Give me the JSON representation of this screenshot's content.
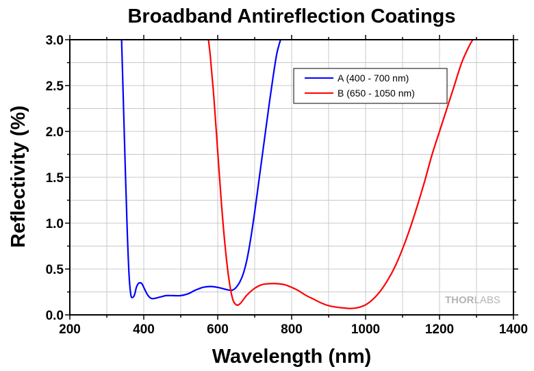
{
  "chart_data": {
    "type": "line",
    "title": "Broadband Antireflection Coatings",
    "xlabel": "Wavelength (nm)",
    "ylabel": "Reflectivity (%)",
    "xlim": [
      200,
      1400
    ],
    "ylim": [
      0,
      3.0
    ],
    "xticks": [
      "200",
      "400",
      "600",
      "800",
      "1000",
      "1200",
      "1400"
    ],
    "yticks": [
      "0.0",
      "0.5",
      "1.0",
      "1.5",
      "2.0",
      "2.5",
      "3.0"
    ],
    "grid": true,
    "legend_position": "top-right",
    "series": [
      {
        "name": "A (400 - 700 nm)",
        "color": "#0000ff",
        "x": [
          340,
          345,
          350,
          355,
          360,
          365,
          370,
          375,
          380,
          385,
          390,
          395,
          400,
          410,
          420,
          430,
          440,
          450,
          460,
          480,
          500,
          520,
          540,
          560,
          580,
          600,
          620,
          630,
          640,
          650,
          660,
          670,
          680,
          690,
          700,
          710,
          720,
          730,
          740,
          750,
          760,
          770
        ],
        "y": [
          3.0,
          2.3,
          1.6,
          0.95,
          0.45,
          0.22,
          0.19,
          0.22,
          0.3,
          0.34,
          0.35,
          0.34,
          0.3,
          0.22,
          0.18,
          0.18,
          0.19,
          0.2,
          0.21,
          0.21,
          0.21,
          0.23,
          0.27,
          0.3,
          0.31,
          0.3,
          0.28,
          0.27,
          0.27,
          0.3,
          0.36,
          0.46,
          0.62,
          0.85,
          1.12,
          1.42,
          1.72,
          2.02,
          2.32,
          2.6,
          2.85,
          3.0
        ]
      },
      {
        "name": "B (650 - 1050 nm)",
        "color": "#ff0000",
        "x": [
          575,
          580,
          590,
          600,
          610,
          620,
          630,
          640,
          650,
          660,
          670,
          680,
          700,
          720,
          740,
          760,
          780,
          800,
          820,
          840,
          860,
          880,
          900,
          920,
          940,
          960,
          980,
          1000,
          1020,
          1040,
          1060,
          1080,
          1100,
          1120,
          1140,
          1160,
          1180,
          1200,
          1220,
          1240,
          1260,
          1280,
          1290
        ],
        "y": [
          3.0,
          2.82,
          2.35,
          1.78,
          1.22,
          0.75,
          0.4,
          0.18,
          0.11,
          0.12,
          0.17,
          0.22,
          0.29,
          0.33,
          0.34,
          0.34,
          0.33,
          0.3,
          0.26,
          0.21,
          0.17,
          0.13,
          0.1,
          0.085,
          0.075,
          0.07,
          0.08,
          0.11,
          0.17,
          0.26,
          0.38,
          0.53,
          0.72,
          0.94,
          1.19,
          1.46,
          1.75,
          2.0,
          2.25,
          2.5,
          2.75,
          2.93,
          3.0
        ]
      }
    ]
  },
  "watermark": {
    "part1": "THOR",
    "part2": "LABS"
  }
}
